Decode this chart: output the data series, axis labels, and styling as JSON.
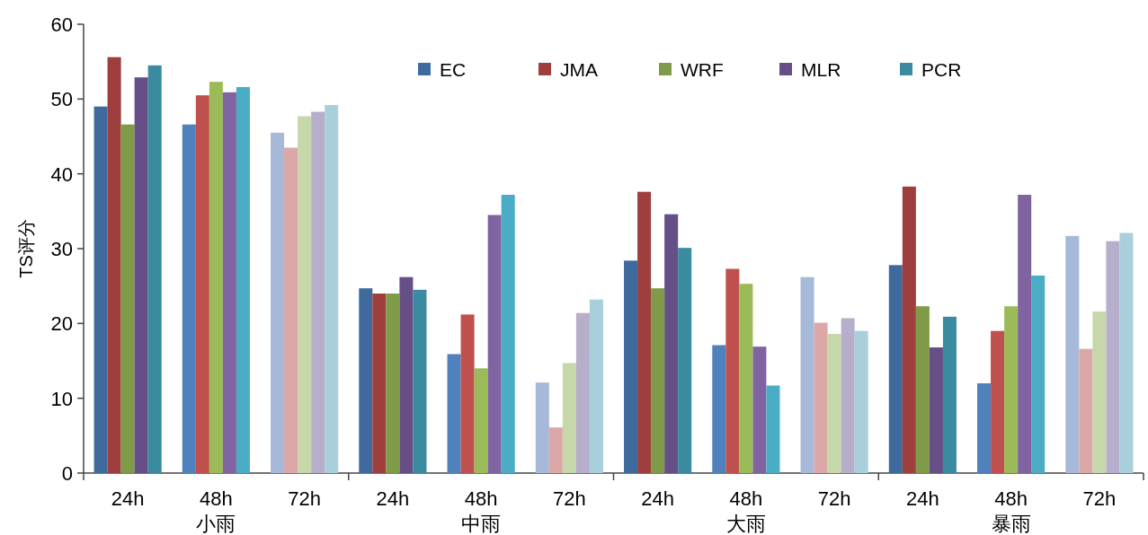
{
  "chart_data": {
    "type": "bar",
    "ylabel": "TS评分",
    "categories": [
      "24h",
      "48h",
      "72h",
      "24h",
      "48h",
      "72h",
      "24h",
      "48h",
      "72h",
      "24h",
      "48h",
      "72h"
    ],
    "annotations": [
      "小雨",
      "中雨",
      "大雨",
      "暴雨"
    ],
    "ylim": [
      0,
      60
    ],
    "yticks": [
      0,
      10,
      20,
      30,
      40,
      50,
      60
    ],
    "legend": "top",
    "series": [
      {
        "name": "EC",
        "color": "#3f6a9e",
        "colors": [
          "#3f6a9e",
          "#4f81bd",
          "#a7b9d8",
          "#3f6a9e",
          "#4f81bd",
          "#a7b9d8",
          "#3f6a9e",
          "#4f81bd",
          "#a7b9d8",
          "#3f6a9e",
          "#4f81bd",
          "#a7b9d8"
        ],
        "values": [
          49,
          46.6,
          45.5,
          24.7,
          15.9,
          12.1,
          28.4,
          17.1,
          26.2,
          27.8,
          12,
          31.7
        ]
      },
      {
        "name": "JMA",
        "color": "#9e3f3d",
        "colors": [
          "#9e3f3d",
          "#c0504d",
          "#dca8a7",
          "#9e3f3d",
          "#c0504d",
          "#dca8a7",
          "#9e3f3d",
          "#c0504d",
          "#dca8a7",
          "#9e3f3d",
          "#c0504d",
          "#dca8a7"
        ],
        "values": [
          55.6,
          50.5,
          43.5,
          24,
          21.2,
          6.1,
          37.6,
          27.3,
          20.1,
          38.3,
          19,
          16.6
        ]
      },
      {
        "name": "WRF",
        "color": "#7f9a48",
        "colors": [
          "#7f9a48",
          "#9bbb59",
          "#c6d7aa",
          "#7f9a48",
          "#9bbb59",
          "#c6d7aa",
          "#7f9a48",
          "#9bbb59",
          "#c6d7aa",
          "#7f9a48",
          "#9bbb59",
          "#c6d7aa"
        ],
        "values": [
          46.6,
          52.3,
          47.7,
          24,
          14,
          14.7,
          24.7,
          25.3,
          18.6,
          22.3,
          22.3,
          21.6
        ]
      },
      {
        "name": "MLR",
        "color": "#664e87",
        "colors": [
          "#664e87",
          "#8064a2",
          "#b7aecc",
          "#664e87",
          "#8064a2",
          "#b7aecc",
          "#664e87",
          "#8064a2",
          "#b7aecc",
          "#664e87",
          "#8064a2",
          "#b7aecc"
        ],
        "values": [
          52.9,
          50.9,
          48.3,
          26.2,
          34.5,
          21.4,
          34.6,
          16.9,
          20.7,
          16.8,
          37.2,
          31
        ]
      },
      {
        "name": "PCR",
        "color": "#3a8aa0",
        "colors": [
          "#3a8aa0",
          "#4bacc6",
          "#a9cfdd",
          "#3a8aa0",
          "#4bacc6",
          "#a9cfdd",
          "#3a8aa0",
          "#4bacc6",
          "#a9cfdd",
          "#3a8aa0",
          "#4bacc6",
          "#a9cfdd"
        ],
        "values": [
          54.5,
          51.6,
          49.2,
          24.5,
          37.2,
          23.2,
          30.1,
          11.7,
          19,
          20.9,
          26.4,
          32.1
        ]
      }
    ]
  }
}
